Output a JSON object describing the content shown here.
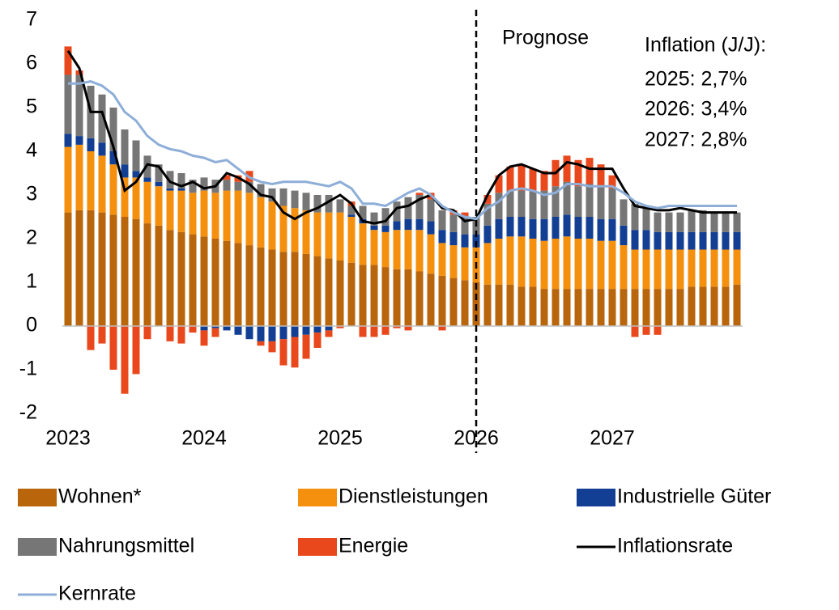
{
  "chart_data": {
    "type": "bar",
    "categories": [
      "2023",
      null,
      null,
      null,
      null,
      null,
      null,
      null,
      null,
      null,
      null,
      null,
      "2024",
      null,
      null,
      null,
      null,
      null,
      null,
      null,
      null,
      null,
      null,
      null,
      "2025",
      null,
      null,
      null,
      null,
      null,
      null,
      null,
      null,
      null,
      null,
      null,
      "2026",
      null,
      null,
      null,
      null,
      null,
      null,
      null,
      null,
      null,
      null,
      null,
      "2027",
      null,
      null,
      null,
      null,
      null,
      null,
      null,
      null,
      null,
      null,
      null
    ],
    "series": [
      {
        "name": "Wohnen*",
        "color": "#b8650b",
        "values": [
          2.6,
          2.65,
          2.65,
          2.6,
          2.55,
          2.5,
          2.45,
          2.35,
          2.3,
          2.2,
          2.15,
          2.1,
          2.05,
          2.0,
          1.95,
          1.9,
          1.85,
          1.8,
          1.75,
          1.7,
          1.7,
          1.65,
          1.6,
          1.55,
          1.5,
          1.45,
          1.4,
          1.4,
          1.35,
          1.3,
          1.3,
          1.25,
          1.2,
          1.15,
          1.1,
          1.05,
          1.0,
          0.95,
          0.95,
          0.95,
          0.9,
          0.9,
          0.85,
          0.85,
          0.85,
          0.85,
          0.85,
          0.85,
          0.85,
          0.85,
          0.85,
          0.85,
          0.85,
          0.85,
          0.85,
          0.9,
          0.9,
          0.9,
          0.9,
          0.95
        ]
      },
      {
        "name": "Dienstleistungen",
        "color": "#f5900f",
        "values": [
          1.5,
          1.5,
          1.35,
          1.3,
          1.15,
          0.9,
          0.95,
          0.95,
          0.9,
          0.9,
          0.95,
          0.95,
          1.05,
          1.05,
          1.15,
          1.2,
          1.2,
          1.15,
          1.1,
          1.05,
          1.0,
          1.0,
          1.0,
          1.05,
          1.1,
          1.05,
          0.95,
          0.8,
          0.8,
          0.9,
          0.9,
          0.95,
          0.9,
          0.75,
          0.75,
          0.75,
          0.8,
          0.95,
          1.05,
          1.1,
          1.15,
          1.1,
          1.1,
          1.15,
          1.2,
          1.15,
          1.15,
          1.1,
          1.1,
          1.0,
          0.9,
          0.9,
          0.9,
          0.9,
          0.9,
          0.85,
          0.85,
          0.85,
          0.85,
          0.8
        ]
      },
      {
        "name": "Industrielle Güter",
        "color": "#123f93",
        "values": [
          0.3,
          0.2,
          0.3,
          0.3,
          0.3,
          0.3,
          0.15,
          0.1,
          0.1,
          0.05,
          0.05,
          0.0,
          -0.1,
          -0.05,
          -0.1,
          -0.2,
          -0.3,
          -0.35,
          -0.35,
          -0.3,
          -0.25,
          -0.2,
          -0.15,
          -0.1,
          0.0,
          0.05,
          0.1,
          0.1,
          0.15,
          0.2,
          0.25,
          0.25,
          0.3,
          0.3,
          0.3,
          0.3,
          0.3,
          0.4,
          0.45,
          0.45,
          0.45,
          0.45,
          0.5,
          0.5,
          0.5,
          0.5,
          0.5,
          0.5,
          0.5,
          0.45,
          0.45,
          0.45,
          0.4,
          0.4,
          0.4,
          0.4,
          0.4,
          0.4,
          0.4,
          0.4
        ]
      },
      {
        "name": "Nahrungsmittel",
        "color": "#767676",
        "values": [
          1.35,
          1.4,
          1.2,
          1.1,
          1.0,
          0.8,
          0.7,
          0.5,
          0.4,
          0.4,
          0.35,
          0.3,
          0.3,
          0.3,
          0.25,
          0.2,
          0.25,
          0.3,
          0.3,
          0.4,
          0.4,
          0.4,
          0.4,
          0.4,
          0.3,
          0.2,
          0.3,
          0.3,
          0.4,
          0.45,
          0.5,
          0.55,
          0.5,
          0.45,
          0.4,
          0.4,
          0.4,
          0.5,
          0.6,
          0.6,
          0.6,
          0.65,
          0.65,
          0.7,
          0.75,
          0.7,
          0.75,
          0.75,
          0.7,
          0.6,
          0.6,
          0.5,
          0.45,
          0.45,
          0.45,
          0.5,
          0.5,
          0.45,
          0.45,
          0.45
        ]
      },
      {
        "name": "Energie",
        "color": "#e8481c",
        "values": [
          0.65,
          0.1,
          -0.55,
          -0.4,
          -1.0,
          -1.55,
          -1.1,
          -0.3,
          0.0,
          -0.35,
          -0.4,
          -0.15,
          -0.35,
          -0.2,
          0.1,
          0.15,
          0.25,
          -0.1,
          -0.25,
          -0.6,
          -0.7,
          -0.55,
          -0.35,
          -0.15,
          -0.05,
          0.1,
          -0.25,
          -0.25,
          -0.2,
          -0.05,
          -0.1,
          0.05,
          0.15,
          -0.1,
          0.1,
          0.1,
          0.0,
          0.2,
          0.4,
          0.55,
          0.6,
          0.5,
          0.45,
          0.6,
          0.6,
          0.6,
          0.6,
          0.5,
          0.3,
          0.0,
          -0.25,
          -0.2,
          -0.2,
          0.0,
          0.0,
          0.0,
          0.0,
          0.0,
          0.0,
          0.0
        ]
      },
      {
        "name": "Inflationsrate",
        "type": "line",
        "color": "#000000",
        "values": [
          6.3,
          5.9,
          4.9,
          4.9,
          4.1,
          3.1,
          3.3,
          3.7,
          3.65,
          3.3,
          3.2,
          3.3,
          3.15,
          3.2,
          3.5,
          3.4,
          3.25,
          3.0,
          2.95,
          2.6,
          2.45,
          2.6,
          2.7,
          2.85,
          3.0,
          2.8,
          2.4,
          2.35,
          2.4,
          2.7,
          2.75,
          2.9,
          3.0,
          2.7,
          2.65,
          2.4,
          2.45,
          3.0,
          3.45,
          3.65,
          3.7,
          3.6,
          3.5,
          3.5,
          3.75,
          3.7,
          3.6,
          3.6,
          3.6,
          3.15,
          2.75,
          2.7,
          2.65,
          2.65,
          2.7,
          2.65,
          2.6,
          2.6,
          2.6,
          2.6
        ]
      },
      {
        "name": "Kernrate",
        "type": "line",
        "color": "#8eaed8",
        "values": [
          5.55,
          5.55,
          5.6,
          5.5,
          5.3,
          4.9,
          4.7,
          4.35,
          4.15,
          4.05,
          4.0,
          3.9,
          3.85,
          3.75,
          3.8,
          3.6,
          3.4,
          3.3,
          3.25,
          3.3,
          3.3,
          3.3,
          3.25,
          3.2,
          3.3,
          3.15,
          2.8,
          2.8,
          2.75,
          2.9,
          3.05,
          3.15,
          3.0,
          2.75,
          2.6,
          2.5,
          2.45,
          2.7,
          2.85,
          3.1,
          3.15,
          3.1,
          3.0,
          3.05,
          3.25,
          3.25,
          3.2,
          3.2,
          3.2,
          3.05,
          2.85,
          2.75,
          2.7,
          2.75,
          2.75,
          2.75,
          2.75,
          2.75,
          2.75,
          2.75
        ]
      }
    ],
    "ylim": [
      -2,
      7
    ],
    "yticks": [
      -2,
      -1,
      0,
      1,
      2,
      3,
      4,
      5,
      6,
      7
    ],
    "grid": false,
    "annotations": [
      "Prognose",
      "Inflation (J/J):",
      "2025: 2,7%",
      "2026: 3,4%",
      "2027: 2,8%"
    ]
  }
}
